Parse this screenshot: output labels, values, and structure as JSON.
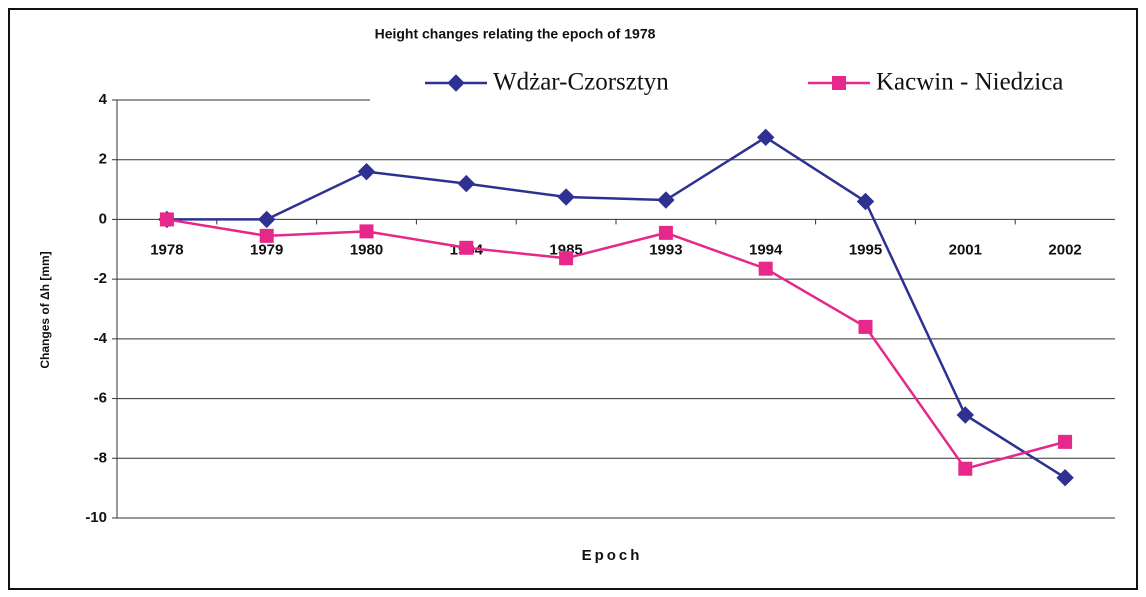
{
  "chart_data": {
    "type": "line",
    "title": "Height changes relating the epoch of 1978",
    "xlabel": "Epoch",
    "ylabel": "Changes of Δh [mm]",
    "categories": [
      "1978",
      "1979",
      "1980",
      "1984",
      "1985",
      "1993",
      "1994",
      "1995",
      "2001",
      "2002"
    ],
    "series": [
      {
        "name": "Wdżar-Czorsztyn",
        "color": "#2e3192",
        "marker": "diamond",
        "values": [
          0,
          0,
          1.6,
          1.2,
          0.75,
          0.65,
          2.75,
          0.6,
          -6.55,
          -8.65
        ]
      },
      {
        "name": "Kacwin - Niedzica",
        "color": "#e6288a",
        "marker": "square",
        "values": [
          0,
          -0.55,
          -0.4,
          -0.95,
          -1.3,
          -0.45,
          -1.65,
          -3.6,
          -8.35,
          -7.45
        ]
      }
    ],
    "ylim": [
      -10,
      4
    ],
    "yticks": [
      -10,
      -8,
      -6,
      -4,
      -2,
      0,
      2,
      4
    ],
    "grid": true,
    "legend": "top"
  }
}
